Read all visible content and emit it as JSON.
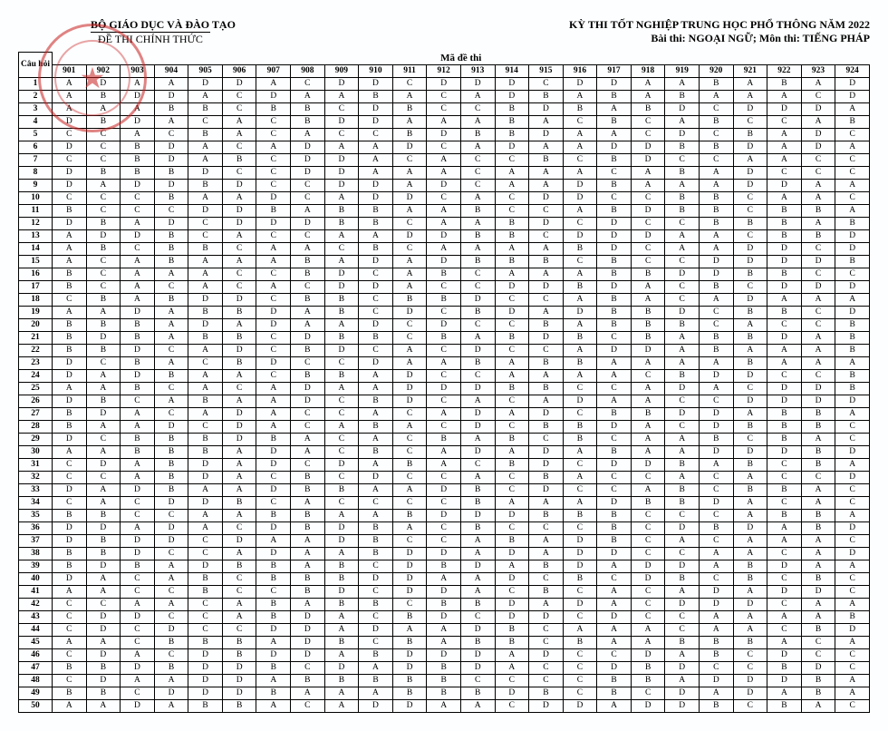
{
  "header": {
    "ministry": "BỘ GIÁO DỤC VÀ ĐÀO TẠO",
    "official": "ĐỀ THI CHÍNH THỨC",
    "exam": "KỲ THI TỐT NGHIỆP TRUNG HỌC PHỔ THÔNG NĂM 2022",
    "subject": "Bài thi: NGOẠI NGỮ; Môn thi: TIẾNG PHÁP",
    "question_label": "Câu hỏi",
    "code_label": "Mã đề thi"
  },
  "table": {
    "codes": [
      "901",
      "902",
      "903",
      "904",
      "905",
      "906",
      "907",
      "908",
      "909",
      "910",
      "911",
      "912",
      "913",
      "914",
      "915",
      "916",
      "917",
      "918",
      "919",
      "920",
      "921",
      "922",
      "923",
      "924"
    ],
    "row_header_col_width": 36,
    "cell_font_size": 9.5,
    "border_color": "#000000",
    "background_color": "#fdfeff",
    "rows": [
      [
        "A",
        "D",
        "A",
        "A",
        "D",
        "D",
        "A",
        "C",
        "D",
        "D",
        "C",
        "D",
        "D",
        "D",
        "C",
        "D",
        "D",
        "A",
        "A",
        "B",
        "A",
        "B",
        "A",
        "D"
      ],
      [
        "A",
        "B",
        "D",
        "D",
        "A",
        "C",
        "D",
        "A",
        "A",
        "B",
        "A",
        "C",
        "A",
        "D",
        "B",
        "A",
        "B",
        "A",
        "B",
        "A",
        "A",
        "A",
        "C",
        "D"
      ],
      [
        "A",
        "A",
        "A",
        "B",
        "B",
        "C",
        "B",
        "B",
        "C",
        "D",
        "B",
        "C",
        "C",
        "B",
        "D",
        "B",
        "A",
        "B",
        "D",
        "C",
        "D",
        "D",
        "D",
        "A"
      ],
      [
        "D",
        "B",
        "D",
        "A",
        "C",
        "A",
        "C",
        "B",
        "D",
        "D",
        "A",
        "A",
        "A",
        "B",
        "A",
        "C",
        "B",
        "C",
        "A",
        "B",
        "C",
        "C",
        "A",
        "B"
      ],
      [
        "C",
        "C",
        "A",
        "C",
        "B",
        "A",
        "C",
        "A",
        "C",
        "C",
        "B",
        "D",
        "B",
        "B",
        "D",
        "A",
        "A",
        "C",
        "D",
        "C",
        "B",
        "A",
        "D",
        "C"
      ],
      [
        "D",
        "C",
        "B",
        "D",
        "A",
        "C",
        "A",
        "D",
        "A",
        "A",
        "D",
        "C",
        "A",
        "D",
        "A",
        "A",
        "D",
        "D",
        "B",
        "B",
        "D",
        "A",
        "D",
        "A"
      ],
      [
        "C",
        "C",
        "B",
        "D",
        "A",
        "B",
        "C",
        "D",
        "D",
        "A",
        "C",
        "A",
        "C",
        "C",
        "B",
        "C",
        "B",
        "D",
        "C",
        "C",
        "A",
        "A",
        "C",
        "C"
      ],
      [
        "D",
        "B",
        "B",
        "B",
        "D",
        "C",
        "C",
        "D",
        "D",
        "A",
        "A",
        "A",
        "C",
        "A",
        "A",
        "A",
        "C",
        "A",
        "B",
        "A",
        "D",
        "C",
        "C",
        "C"
      ],
      [
        "D",
        "A",
        "D",
        "D",
        "B",
        "D",
        "C",
        "C",
        "D",
        "D",
        "A",
        "D",
        "C",
        "A",
        "A",
        "D",
        "B",
        "A",
        "A",
        "A",
        "D",
        "D",
        "A",
        "A"
      ],
      [
        "C",
        "C",
        "C",
        "B",
        "A",
        "A",
        "D",
        "C",
        "A",
        "D",
        "D",
        "C",
        "A",
        "C",
        "D",
        "D",
        "C",
        "C",
        "B",
        "B",
        "C",
        "A",
        "A",
        "C"
      ],
      [
        "B",
        "C",
        "C",
        "C",
        "D",
        "D",
        "B",
        "A",
        "B",
        "B",
        "A",
        "A",
        "B",
        "C",
        "C",
        "A",
        "B",
        "D",
        "B",
        "B",
        "C",
        "B",
        "B",
        "A"
      ],
      [
        "D",
        "B",
        "A",
        "D",
        "C",
        "D",
        "D",
        "D",
        "B",
        "B",
        "C",
        "A",
        "A",
        "B",
        "D",
        "C",
        "D",
        "C",
        "C",
        "B",
        "B",
        "B",
        "A",
        "B"
      ],
      [
        "A",
        "D",
        "D",
        "B",
        "C",
        "A",
        "C",
        "C",
        "A",
        "A",
        "D",
        "D",
        "B",
        "B",
        "C",
        "D",
        "D",
        "D",
        "A",
        "A",
        "C",
        "B",
        "B",
        "D"
      ],
      [
        "A",
        "B",
        "C",
        "B",
        "B",
        "C",
        "A",
        "A",
        "C",
        "B",
        "C",
        "A",
        "A",
        "A",
        "A",
        "B",
        "D",
        "C",
        "A",
        "A",
        "D",
        "D",
        "C",
        "D"
      ],
      [
        "A",
        "C",
        "A",
        "B",
        "A",
        "A",
        "A",
        "B",
        "A",
        "D",
        "A",
        "D",
        "B",
        "B",
        "B",
        "C",
        "B",
        "C",
        "C",
        "D",
        "D",
        "D",
        "D",
        "B"
      ],
      [
        "B",
        "C",
        "A",
        "A",
        "A",
        "C",
        "C",
        "B",
        "D",
        "C",
        "A",
        "B",
        "C",
        "A",
        "A",
        "A",
        "B",
        "B",
        "D",
        "D",
        "B",
        "B",
        "C",
        "C"
      ],
      [
        "B",
        "C",
        "A",
        "C",
        "A",
        "C",
        "A",
        "C",
        "D",
        "D",
        "A",
        "C",
        "C",
        "D",
        "D",
        "B",
        "D",
        "A",
        "C",
        "B",
        "C",
        "D",
        "D",
        "D"
      ],
      [
        "C",
        "B",
        "A",
        "B",
        "D",
        "D",
        "C",
        "B",
        "B",
        "C",
        "B",
        "B",
        "D",
        "C",
        "C",
        "A",
        "B",
        "A",
        "C",
        "A",
        "D",
        "A",
        "A",
        "A"
      ],
      [
        "A",
        "A",
        "D",
        "A",
        "B",
        "B",
        "D",
        "A",
        "B",
        "C",
        "D",
        "C",
        "B",
        "D",
        "A",
        "D",
        "B",
        "B",
        "D",
        "C",
        "B",
        "B",
        "C",
        "D"
      ],
      [
        "B",
        "B",
        "B",
        "A",
        "D",
        "A",
        "D",
        "A",
        "A",
        "D",
        "C",
        "D",
        "C",
        "C",
        "B",
        "A",
        "B",
        "B",
        "B",
        "C",
        "A",
        "C",
        "C",
        "B"
      ],
      [
        "B",
        "D",
        "B",
        "A",
        "B",
        "B",
        "C",
        "D",
        "B",
        "B",
        "C",
        "B",
        "A",
        "B",
        "D",
        "B",
        "C",
        "B",
        "A",
        "B",
        "B",
        "D",
        "A",
        "B"
      ],
      [
        "B",
        "B",
        "D",
        "C",
        "A",
        "D",
        "C",
        "B",
        "D",
        "C",
        "A",
        "C",
        "D",
        "C",
        "C",
        "A",
        "D",
        "D",
        "A",
        "B",
        "A",
        "A",
        "A",
        "B"
      ],
      [
        "D",
        "C",
        "B",
        "A",
        "C",
        "B",
        "D",
        "C",
        "C",
        "D",
        "A",
        "A",
        "B",
        "A",
        "B",
        "B",
        "A",
        "A",
        "A",
        "A",
        "B",
        "A",
        "A",
        "A"
      ],
      [
        "D",
        "A",
        "D",
        "B",
        "A",
        "A",
        "C",
        "B",
        "B",
        "A",
        "D",
        "C",
        "C",
        "A",
        "A",
        "A",
        "A",
        "C",
        "B",
        "D",
        "D",
        "C",
        "C",
        "B"
      ],
      [
        "A",
        "A",
        "B",
        "C",
        "A",
        "C",
        "A",
        "D",
        "A",
        "A",
        "D",
        "D",
        "D",
        "B",
        "B",
        "C",
        "C",
        "A",
        "D",
        "A",
        "C",
        "D",
        "D",
        "B"
      ],
      [
        "D",
        "B",
        "C",
        "A",
        "B",
        "A",
        "A",
        "D",
        "C",
        "B",
        "D",
        "C",
        "A",
        "C",
        "A",
        "D",
        "A",
        "A",
        "C",
        "C",
        "D",
        "D",
        "D",
        "D"
      ],
      [
        "B",
        "D",
        "A",
        "C",
        "A",
        "D",
        "A",
        "C",
        "C",
        "A",
        "C",
        "A",
        "D",
        "A",
        "D",
        "C",
        "B",
        "B",
        "D",
        "D",
        "A",
        "B",
        "B",
        "A"
      ],
      [
        "B",
        "A",
        "A",
        "D",
        "C",
        "D",
        "A",
        "C",
        "A",
        "B",
        "A",
        "C",
        "D",
        "C",
        "B",
        "B",
        "D",
        "A",
        "C",
        "D",
        "B",
        "B",
        "B",
        "C"
      ],
      [
        "D",
        "C",
        "B",
        "B",
        "B",
        "D",
        "B",
        "A",
        "C",
        "A",
        "C",
        "B",
        "A",
        "B",
        "C",
        "B",
        "C",
        "A",
        "A",
        "B",
        "C",
        "B",
        "A",
        "C"
      ],
      [
        "A",
        "A",
        "B",
        "B",
        "B",
        "A",
        "D",
        "A",
        "C",
        "B",
        "C",
        "A",
        "D",
        "A",
        "D",
        "A",
        "B",
        "A",
        "A",
        "D",
        "D",
        "D",
        "B",
        "D"
      ],
      [
        "C",
        "D",
        "A",
        "B",
        "D",
        "A",
        "D",
        "C",
        "D",
        "A",
        "B",
        "A",
        "C",
        "B",
        "D",
        "C",
        "D",
        "D",
        "B",
        "A",
        "B",
        "C",
        "B",
        "A"
      ],
      [
        "C",
        "C",
        "A",
        "B",
        "D",
        "A",
        "C",
        "B",
        "C",
        "D",
        "C",
        "C",
        "A",
        "C",
        "B",
        "A",
        "C",
        "C",
        "A",
        "C",
        "A",
        "C",
        "C",
        "D"
      ],
      [
        "D",
        "A",
        "D",
        "B",
        "A",
        "A",
        "D",
        "B",
        "B",
        "A",
        "A",
        "D",
        "B",
        "C",
        "D",
        "C",
        "C",
        "A",
        "B",
        "C",
        "B",
        "B",
        "A",
        "C"
      ],
      [
        "C",
        "A",
        "C",
        "D",
        "D",
        "B",
        "C",
        "A",
        "C",
        "C",
        "C",
        "C",
        "B",
        "A",
        "A",
        "A",
        "D",
        "B",
        "B",
        "D",
        "A",
        "C",
        "A",
        "C"
      ],
      [
        "B",
        "B",
        "C",
        "C",
        "A",
        "A",
        "B",
        "B",
        "A",
        "A",
        "B",
        "D",
        "D",
        "D",
        "B",
        "B",
        "B",
        "C",
        "C",
        "C",
        "A",
        "B",
        "B",
        "A"
      ],
      [
        "D",
        "D",
        "A",
        "D",
        "A",
        "C",
        "D",
        "B",
        "D",
        "B",
        "A",
        "C",
        "B",
        "C",
        "C",
        "C",
        "B",
        "C",
        "D",
        "B",
        "D",
        "A",
        "B",
        "D"
      ],
      [
        "D",
        "B",
        "D",
        "D",
        "C",
        "D",
        "A",
        "A",
        "D",
        "B",
        "C",
        "C",
        "A",
        "B",
        "A",
        "D",
        "B",
        "C",
        "A",
        "C",
        "A",
        "A",
        "A",
        "C"
      ],
      [
        "B",
        "B",
        "D",
        "C",
        "C",
        "A",
        "D",
        "A",
        "A",
        "B",
        "D",
        "D",
        "A",
        "D",
        "A",
        "D",
        "D",
        "C",
        "C",
        "A",
        "A",
        "C",
        "A",
        "D"
      ],
      [
        "B",
        "D",
        "B",
        "A",
        "D",
        "B",
        "B",
        "A",
        "B",
        "C",
        "D",
        "B",
        "D",
        "A",
        "B",
        "D",
        "A",
        "D",
        "D",
        "A",
        "B",
        "D",
        "A",
        "A"
      ],
      [
        "D",
        "A",
        "C",
        "A",
        "B",
        "C",
        "B",
        "B",
        "B",
        "D",
        "D",
        "A",
        "A",
        "D",
        "C",
        "B",
        "C",
        "D",
        "B",
        "C",
        "B",
        "C",
        "B",
        "C"
      ],
      [
        "A",
        "A",
        "C",
        "C",
        "B",
        "C",
        "C",
        "B",
        "D",
        "C",
        "D",
        "D",
        "A",
        "C",
        "B",
        "C",
        "A",
        "C",
        "A",
        "D",
        "A",
        "D",
        "D",
        "C"
      ],
      [
        "C",
        "C",
        "A",
        "A",
        "C",
        "A",
        "B",
        "A",
        "B",
        "B",
        "C",
        "B",
        "B",
        "D",
        "A",
        "D",
        "A",
        "C",
        "D",
        "D",
        "D",
        "C",
        "A",
        "A"
      ],
      [
        "C",
        "D",
        "D",
        "C",
        "C",
        "A",
        "B",
        "D",
        "A",
        "C",
        "B",
        "D",
        "C",
        "D",
        "D",
        "C",
        "D",
        "C",
        "C",
        "A",
        "A",
        "A",
        "A",
        "B"
      ],
      [
        "C",
        "D",
        "C",
        "D",
        "C",
        "C",
        "D",
        "D",
        "A",
        "D",
        "A",
        "A",
        "D",
        "B",
        "C",
        "A",
        "A",
        "A",
        "C",
        "A",
        "A",
        "C",
        "B",
        "D"
      ],
      [
        "A",
        "A",
        "C",
        "B",
        "B",
        "B",
        "A",
        "D",
        "B",
        "C",
        "B",
        "A",
        "B",
        "B",
        "C",
        "B",
        "A",
        "A",
        "B",
        "B",
        "B",
        "A",
        "C",
        "A"
      ],
      [
        "C",
        "D",
        "A",
        "C",
        "D",
        "B",
        "D",
        "D",
        "A",
        "B",
        "D",
        "D",
        "D",
        "A",
        "D",
        "C",
        "C",
        "D",
        "A",
        "B",
        "C",
        "D",
        "C",
        "C"
      ],
      [
        "B",
        "B",
        "D",
        "B",
        "D",
        "D",
        "B",
        "C",
        "D",
        "A",
        "D",
        "B",
        "D",
        "A",
        "C",
        "C",
        "D",
        "B",
        "D",
        "C",
        "C",
        "B",
        "D",
        "C"
      ],
      [
        "C",
        "D",
        "A",
        "A",
        "D",
        "D",
        "A",
        "B",
        "B",
        "B",
        "B",
        "B",
        "C",
        "C",
        "C",
        "C",
        "B",
        "B",
        "A",
        "D",
        "D",
        "D",
        "B",
        "A"
      ],
      [
        "B",
        "B",
        "C",
        "D",
        "D",
        "D",
        "B",
        "A",
        "A",
        "A",
        "B",
        "B",
        "B",
        "D",
        "B",
        "C",
        "B",
        "C",
        "D",
        "A",
        "D",
        "A",
        "B",
        "A"
      ],
      [
        "A",
        "A",
        "D",
        "A",
        "B",
        "B",
        "A",
        "C",
        "A",
        "D",
        "D",
        "A",
        "A",
        "C",
        "D",
        "D",
        "A",
        "D",
        "D",
        "B",
        "C",
        "B",
        "A",
        "C"
      ]
    ]
  },
  "stamp": {
    "outer_color": "rgba(200,30,30,0.55)",
    "inner_symbol": "★"
  }
}
